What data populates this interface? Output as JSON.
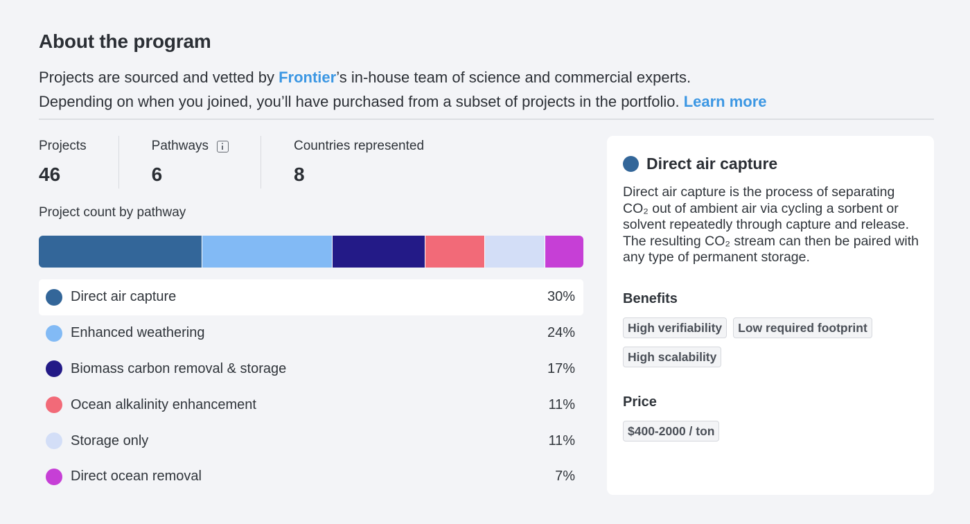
{
  "header": {
    "title": "About the program",
    "line1_before": "Projects are sourced and vetted by ",
    "line1_link": "Frontier",
    "line1_after": "’s in-house team of science and commercial experts.",
    "line2": "Depending on when you joined, you’ll have purchased from a subset of projects in the portfolio. ",
    "learn_more": "Learn more"
  },
  "stats": [
    {
      "label": "Projects",
      "value": "46"
    },
    {
      "label": "Pathways",
      "value": "6"
    },
    {
      "label": "Countries represented",
      "value": "8"
    }
  ],
  "chart_data": {
    "type": "bar",
    "title": "Project count by pathway",
    "categories": [
      "Direct air capture",
      "Enhanced weathering",
      "Biomass carbon removal & storage",
      "Ocean alkalinity enhancement",
      "Storage only",
      "Direct ocean removal"
    ],
    "values": [
      30,
      24,
      17,
      11,
      11,
      7
    ],
    "value_labels": [
      "30%",
      "24%",
      "17%",
      "11%",
      "11%",
      "7%"
    ],
    "colors": [
      "#336699",
      "#82baf5",
      "#231a87",
      "#f26a78",
      "#d3def7",
      "#c63fd6"
    ]
  },
  "detail": {
    "title": "Direct air capture",
    "color": "#336699",
    "description": "Direct air capture is the process of separating CO₂ out of ambient air via cycling a sorbent or solvent repeatedly through capture and release. The resulting CO₂ stream can then be paired with any type of permanent storage.",
    "benefits_label": "Benefits",
    "benefits": [
      "High verifiability",
      "Low required footprint",
      "High scalability"
    ],
    "price_label": "Price",
    "price": "$400-2000 / ton"
  }
}
